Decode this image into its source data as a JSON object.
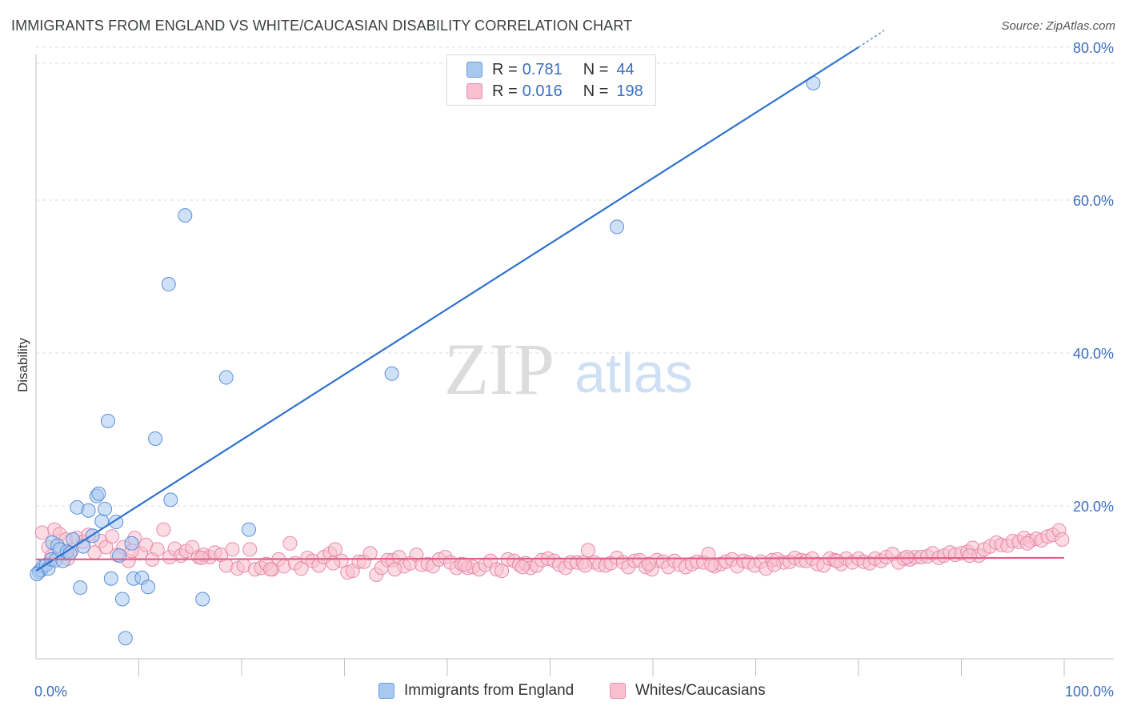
{
  "title": "IMMIGRANTS FROM ENGLAND VS WHITE/CAUCASIAN DISABILITY CORRELATION CHART",
  "source": "Source: ZipAtlas.com",
  "watermark": {
    "zip": "ZIP",
    "atlas": "atlas"
  },
  "legend": {
    "r_label": "R =",
    "n_label": "N =",
    "rows": [
      {
        "r": "0.781",
        "n": "44",
        "color": "#a8c8f0",
        "border": "#6a9fdc"
      },
      {
        "r": "0.016",
        "n": "198",
        "color": "#f8bfd0",
        "border": "#e890ab"
      }
    ]
  },
  "bottom_legend": {
    "series1": "Immigrants from England",
    "series2": "Whites/Caucasians"
  },
  "colors": {
    "blue_fill": "#a8c8f0",
    "blue_stroke": "#5b8fd6",
    "blue_line": "#2f72d0",
    "pink_fill": "#f8bfd0",
    "pink_stroke": "#e88aa8",
    "pink_line": "#e0608a",
    "axis_text": "#3a6fc4",
    "grid": "#dcdcdc"
  },
  "chart_data": {
    "type": "scatter",
    "title": "IMMIGRANTS FROM ENGLAND VS WHITE/CAUCASIAN DISABILITY CORRELATION CHART",
    "xlabel": "",
    "ylabel": "Disability",
    "xlim": [
      0,
      100
    ],
    "ylim": [
      0,
      80
    ],
    "x_tick_labels": [
      "0.0%",
      "100.0%"
    ],
    "y_ticks": [
      20,
      40,
      60,
      80
    ],
    "y_tick_labels": [
      "20.0%",
      "40.0%",
      "60.0%",
      "80.0%"
    ],
    "grid": true,
    "series": [
      {
        "name": "Immigrants from England",
        "points": [
          [
            0.3,
            11.4
          ],
          [
            0.5,
            11.6
          ],
          [
            0.7,
            12.1
          ],
          [
            1.0,
            12.3
          ],
          [
            1.2,
            11.8
          ],
          [
            1.5,
            13.0
          ],
          [
            1.6,
            15.2
          ],
          [
            1.9,
            12.9
          ],
          [
            2.1,
            14.8
          ],
          [
            2.3,
            14.3
          ],
          [
            2.6,
            12.8
          ],
          [
            3.0,
            14.0
          ],
          [
            3.3,
            13.8
          ],
          [
            3.6,
            15.6
          ],
          [
            4.0,
            19.8
          ],
          [
            4.3,
            9.3
          ],
          [
            4.6,
            14.7
          ],
          [
            5.1,
            19.4
          ],
          [
            5.5,
            16.1
          ],
          [
            5.9,
            21.3
          ],
          [
            6.1,
            21.6
          ],
          [
            6.4,
            18.0
          ],
          [
            6.7,
            19.6
          ],
          [
            7.0,
            31.1
          ],
          [
            7.3,
            10.5
          ],
          [
            7.8,
            17.9
          ],
          [
            8.1,
            13.5
          ],
          [
            8.4,
            7.8
          ],
          [
            8.7,
            2.7
          ],
          [
            9.3,
            15.1
          ],
          [
            9.5,
            10.5
          ],
          [
            10.3,
            10.6
          ],
          [
            10.9,
            9.4
          ],
          [
            11.6,
            28.8
          ],
          [
            12.9,
            49.0
          ],
          [
            13.1,
            20.8
          ],
          [
            14.5,
            58.0
          ],
          [
            16.2,
            7.8
          ],
          [
            18.5,
            36.8
          ],
          [
            20.7,
            16.9
          ],
          [
            34.6,
            37.3
          ],
          [
            56.5,
            56.5
          ],
          [
            75.6,
            75.3
          ],
          [
            0.1,
            11.1
          ]
        ],
        "trend": {
          "x0": 0,
          "y0": 11.5,
          "x1": 80,
          "y1": 80
        }
      },
      {
        "name": "Whites/Caucasians",
        "points": [
          [
            0.6,
            16.5
          ],
          [
            1.2,
            14.6
          ],
          [
            1.8,
            16.9
          ],
          [
            2.3,
            16.3
          ],
          [
            2.9,
            15.6
          ],
          [
            3.5,
            14.2
          ],
          [
            4.0,
            15.8
          ],
          [
            4.6,
            15.3
          ],
          [
            5.1,
            16.2
          ],
          [
            5.7,
            13.9
          ],
          [
            6.3,
            15.4
          ],
          [
            6.8,
            14.6
          ],
          [
            7.4,
            16.0
          ],
          [
            7.9,
            13.6
          ],
          [
            8.5,
            14.6
          ],
          [
            9.0,
            12.8
          ],
          [
            9.6,
            15.8
          ],
          [
            10.2,
            13.8
          ],
          [
            10.7,
            14.9
          ],
          [
            11.3,
            13.0
          ],
          [
            11.8,
            14.3
          ],
          [
            12.4,
            16.9
          ],
          [
            13.0,
            13.3
          ],
          [
            13.5,
            14.4
          ],
          [
            14.1,
            13.5
          ],
          [
            14.6,
            14.1
          ],
          [
            15.2,
            14.6
          ],
          [
            15.8,
            13.3
          ],
          [
            16.3,
            13.6
          ],
          [
            16.9,
            13.3
          ],
          [
            17.4,
            13.9
          ],
          [
            18.0,
            13.6
          ],
          [
            18.5,
            12.2
          ],
          [
            19.1,
            14.3
          ],
          [
            19.6,
            11.8
          ],
          [
            20.2,
            12.2
          ],
          [
            20.8,
            14.3
          ],
          [
            21.3,
            11.7
          ],
          [
            21.9,
            11.9
          ],
          [
            22.4,
            12.4
          ],
          [
            23.0,
            11.7
          ],
          [
            23.6,
            13.0
          ],
          [
            24.1,
            12.1
          ],
          [
            24.7,
            15.1
          ],
          [
            25.2,
            12.5
          ],
          [
            25.8,
            11.8
          ],
          [
            26.4,
            13.2
          ],
          [
            26.9,
            12.8
          ],
          [
            27.5,
            12.2
          ],
          [
            28.0,
            13.3
          ],
          [
            28.6,
            13.8
          ],
          [
            29.1,
            14.3
          ],
          [
            29.7,
            12.8
          ],
          [
            30.3,
            11.3
          ],
          [
            30.8,
            11.5
          ],
          [
            31.4,
            12.7
          ],
          [
            31.9,
            12.7
          ],
          [
            32.5,
            13.8
          ],
          [
            33.1,
            11.0
          ],
          [
            33.6,
            11.9
          ],
          [
            34.2,
            12.9
          ],
          [
            34.7,
            12.9
          ],
          [
            35.3,
            13.3
          ],
          [
            35.8,
            12.1
          ],
          [
            36.4,
            12.5
          ],
          [
            37.0,
            13.6
          ],
          [
            37.5,
            12.3
          ],
          [
            38.1,
            12.4
          ],
          [
            38.6,
            12.1
          ],
          [
            39.2,
            13.0
          ],
          [
            39.8,
            13.3
          ],
          [
            40.3,
            12.6
          ],
          [
            40.9,
            11.9
          ],
          [
            41.4,
            12.4
          ],
          [
            42.0,
            11.9
          ],
          [
            42.5,
            12.0
          ],
          [
            43.1,
            11.7
          ],
          [
            43.7,
            12.3
          ],
          [
            44.2,
            12.8
          ],
          [
            44.8,
            11.7
          ],
          [
            45.3,
            11.5
          ],
          [
            45.9,
            13.0
          ],
          [
            46.5,
            12.8
          ],
          [
            47.0,
            12.3
          ],
          [
            47.6,
            12.5
          ],
          [
            48.1,
            11.9
          ],
          [
            48.7,
            12.2
          ],
          [
            49.2,
            12.9
          ],
          [
            49.8,
            13.1
          ],
          [
            50.4,
            12.8
          ],
          [
            50.9,
            12.3
          ],
          [
            51.5,
            11.9
          ],
          [
            52.0,
            12.6
          ],
          [
            52.6,
            12.6
          ],
          [
            53.2,
            12.6
          ],
          [
            53.7,
            14.2
          ],
          [
            54.3,
            12.6
          ],
          [
            54.8,
            12.3
          ],
          [
            55.4,
            12.2
          ],
          [
            55.9,
            12.5
          ],
          [
            56.5,
            13.2
          ],
          [
            57.1,
            12.6
          ],
          [
            57.6,
            12.0
          ],
          [
            58.2,
            12.8
          ],
          [
            58.7,
            12.9
          ],
          [
            59.3,
            12.0
          ],
          [
            59.9,
            11.7
          ],
          [
            60.4,
            12.9
          ],
          [
            61.0,
            12.7
          ],
          [
            61.5,
            12.0
          ],
          [
            62.1,
            12.8
          ],
          [
            62.6,
            12.3
          ],
          [
            63.2,
            12.0
          ],
          [
            63.8,
            12.4
          ],
          [
            64.3,
            12.7
          ],
          [
            64.9,
            12.6
          ],
          [
            65.4,
            13.7
          ],
          [
            66.0,
            12.1
          ],
          [
            66.6,
            12.4
          ],
          [
            67.1,
            12.7
          ],
          [
            67.7,
            13.0
          ],
          [
            68.2,
            12.1
          ],
          [
            68.8,
            12.8
          ],
          [
            69.3,
            12.6
          ],
          [
            69.9,
            12.2
          ],
          [
            70.5,
            12.7
          ],
          [
            71.0,
            11.8
          ],
          [
            71.6,
            12.9
          ],
          [
            72.1,
            13.0
          ],
          [
            72.7,
            12.6
          ],
          [
            73.3,
            12.7
          ],
          [
            73.8,
            13.2
          ],
          [
            74.4,
            12.9
          ],
          [
            74.9,
            12.8
          ],
          [
            75.5,
            13.1
          ],
          [
            76.0,
            12.4
          ],
          [
            76.6,
            12.2
          ],
          [
            77.2,
            13.1
          ],
          [
            77.7,
            12.9
          ],
          [
            78.3,
            12.4
          ],
          [
            78.8,
            13.1
          ],
          [
            79.4,
            12.6
          ],
          [
            80.0,
            13.1
          ],
          [
            80.5,
            12.7
          ],
          [
            81.1,
            12.5
          ],
          [
            81.6,
            13.1
          ],
          [
            82.2,
            12.8
          ],
          [
            82.7,
            13.3
          ],
          [
            83.3,
            13.7
          ],
          [
            83.9,
            12.6
          ],
          [
            84.4,
            13.1
          ],
          [
            85.0,
            13.0
          ],
          [
            85.5,
            13.3
          ],
          [
            86.1,
            13.3
          ],
          [
            86.7,
            13.4
          ],
          [
            87.2,
            13.8
          ],
          [
            87.8,
            13.2
          ],
          [
            88.3,
            13.5
          ],
          [
            88.9,
            13.9
          ],
          [
            89.4,
            13.6
          ],
          [
            90.0,
            13.8
          ],
          [
            90.6,
            14.0
          ],
          [
            91.1,
            14.5
          ],
          [
            91.7,
            13.5
          ],
          [
            92.2,
            14.3
          ],
          [
            92.8,
            14.7
          ],
          [
            93.4,
            15.2
          ],
          [
            93.9,
            14.9
          ],
          [
            94.5,
            14.8
          ],
          [
            95.0,
            15.4
          ],
          [
            95.6,
            15.3
          ],
          [
            96.1,
            15.8
          ],
          [
            96.7,
            15.4
          ],
          [
            97.3,
            15.7
          ],
          [
            97.8,
            15.5
          ],
          [
            98.4,
            16.0
          ],
          [
            98.9,
            16.2
          ],
          [
            99.5,
            16.8
          ],
          [
            1.5,
            13.4
          ],
          [
            3.1,
            13.1
          ],
          [
            9.3,
            14.1
          ],
          [
            16.1,
            13.2
          ],
          [
            22.8,
            11.7
          ],
          [
            28.9,
            12.5
          ],
          [
            34.9,
            11.7
          ],
          [
            41.7,
            12.3
          ],
          [
            47.3,
            12.0
          ],
          [
            53.4,
            12.2
          ],
          [
            59.6,
            12.4
          ],
          [
            65.7,
            12.3
          ],
          [
            71.8,
            12.3
          ],
          [
            77.9,
            12.8
          ],
          [
            84.7,
            13.3
          ],
          [
            90.8,
            13.5
          ],
          [
            96.4,
            15.1
          ],
          [
            99.8,
            15.6
          ]
        ],
        "trend": {
          "x0": 0,
          "y0": 13.0,
          "x1": 100,
          "y1": 13.2
        }
      }
    ]
  }
}
